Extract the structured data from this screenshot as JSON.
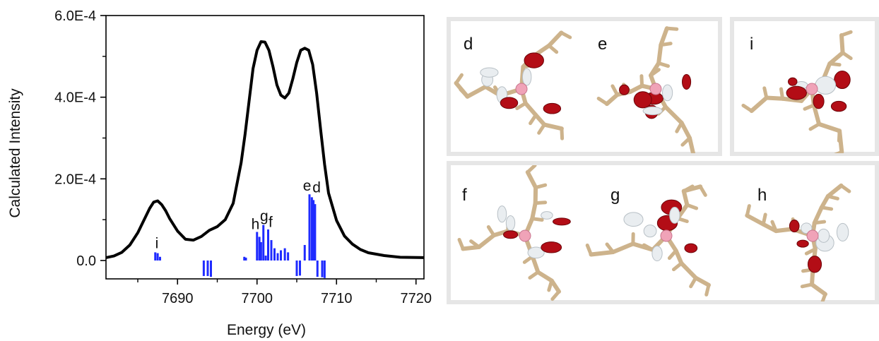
{
  "chart_data": {
    "type": "line",
    "xlabel": "Energy (eV)",
    "ylabel": "Calculated Intensity",
    "xlim": [
      7681,
      7721
    ],
    "ylim": [
      -4.5e-05,
      0.0006
    ],
    "x_ticks": [
      7690,
      7700,
      7710,
      7720
    ],
    "y_ticks": [
      0.0,
      0.0002,
      0.0004,
      0.0006
    ],
    "y_tick_labels": [
      "0.0",
      "2.0E-4",
      "4.0E-4",
      "6.0E-4"
    ],
    "series": [
      {
        "style": "line",
        "color": "#000000",
        "x": [
          7681,
          7682,
          7683,
          7684,
          7685,
          7686,
          7686.5,
          7687,
          7687.5,
          7688,
          7688.5,
          7689,
          7690,
          7691,
          7692,
          7693,
          7694,
          7695,
          7696,
          7697,
          7698,
          7698.5,
          7699,
          7699.5,
          7700,
          7700.5,
          7701,
          7701.5,
          7702,
          7702.5,
          7703,
          7703.5,
          7704,
          7704.5,
          7705,
          7705.5,
          7706,
          7706.5,
          7707,
          7707.5,
          7708,
          7708.5,
          7709,
          7710,
          7711,
          7712,
          7713,
          7714,
          7716,
          7718,
          7721
        ],
        "y": [
          7e-06,
          1.1e-05,
          2e-05,
          3.8e-05,
          6.8e-05,
          0.000108,
          0.000128,
          0.000143,
          0.000146,
          0.000137,
          0.000122,
          0.000103,
          7.2e-05,
          5.2e-05,
          5e-05,
          5.9e-05,
          7.4e-05,
          8.3e-05,
          0.0001,
          0.00014,
          0.00024,
          0.00031,
          0.00039,
          0.00047,
          0.000515,
          0.000536,
          0.000535,
          0.000515,
          0.000475,
          0.00043,
          0.000405,
          0.000398,
          0.00041,
          0.000445,
          0.000485,
          0.000515,
          0.00052,
          0.000515,
          0.00048,
          0.00041,
          0.00032,
          0.000235,
          0.000165,
          9.8e-05,
          6e-05,
          4e-05,
          2.7e-05,
          1.9e-05,
          1.2e-05,
          8e-06,
          7e-06
        ]
      },
      {
        "style": "sticks",
        "color": "#1f2bff",
        "x": [
          7687.2,
          7687.5,
          7687.8,
          7693.3,
          7693.8,
          7694.2,
          7698.4,
          7698.6,
          7700,
          7700.3,
          7700.5,
          7700.8,
          7701.1,
          7701.4,
          7701.8,
          7702.2,
          7702.6,
          7703,
          7703.5,
          7703.9,
          7705,
          7705.4,
          7706.0,
          7706.6,
          7706.9,
          7707.1,
          7707.3,
          7707.6,
          7708.2,
          7708.5
        ],
        "y": [
          2e-05,
          1.8e-05,
          9e-06,
          -3.8e-05,
          -3.8e-05,
          -4e-05,
          9e-06,
          7e-06,
          7e-05,
          5.8e-05,
          4.5e-05,
          8.7e-05,
          1.2e-05,
          7.6e-05,
          5e-05,
          3e-05,
          1.8e-05,
          2.5e-05,
          3e-05,
          2e-05,
          -3.8e-05,
          -3.7e-05,
          3.8e-05,
          0.000162,
          0.000155,
          0.000148,
          0.000138,
          -4e-05,
          -4.1e-05,
          -4.3e-05
        ]
      }
    ],
    "annotations": [
      {
        "text": "i",
        "x": 7687.4,
        "y": 3e-05
      },
      {
        "text": "h",
        "x": 7699.8,
        "y": 7.7e-05
      },
      {
        "text": "g",
        "x": 7700.9,
        "y": 9.7e-05
      },
      {
        "text": "f",
        "x": 7701.7,
        "y": 8.2e-05
      },
      {
        "text": "e",
        "x": 7706.3,
        "y": 0.000171
      },
      {
        "text": "d",
        "x": 7707.5,
        "y": 0.000167
      }
    ],
    "grid": false
  },
  "orbitals": [
    {
      "label": "d"
    },
    {
      "label": "e"
    },
    {
      "label": "i"
    },
    {
      "label": "f"
    },
    {
      "label": "g"
    },
    {
      "label": "h"
    }
  ],
  "colors": {
    "panel_border": "#e6e6e6",
    "lobe_positive": "#b30d16",
    "lobe_negative": "#e9edf0",
    "metal_center": "#f0a3b8",
    "bond": "#cdb38c"
  }
}
